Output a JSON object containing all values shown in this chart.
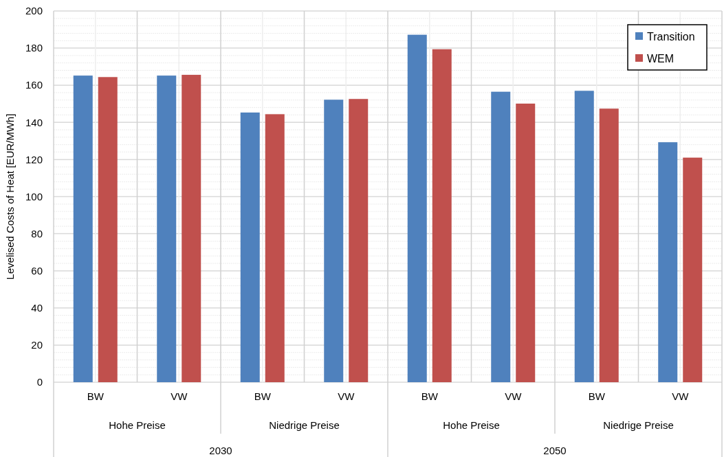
{
  "chart_data": {
    "type": "bar",
    "ylabel": "Levelised Costs of Heat [EUR/MWh]",
    "categories": [
      "BW",
      "VW",
      "BW",
      "VW",
      "BW",
      "VW",
      "BW",
      "VW"
    ],
    "series": [
      {
        "name": "Transition",
        "color": "#4f81bd",
        "values": [
          165.2,
          165.2,
          145.3,
          152.2,
          187.2,
          156.5,
          157.0,
          129.3
        ]
      },
      {
        "name": "WEM",
        "color": "#c0504d",
        "values": [
          164.4,
          165.6,
          144.4,
          152.6,
          179.4,
          150.1,
          147.4,
          121.0
        ]
      }
    ],
    "annotations": [
      "Hohe Preise",
      "Niedrige Preise",
      "Hohe Preise",
      "Niedrige Preise",
      "2030",
      "2050"
    ],
    "ylim": [
      0,
      200
    ],
    "yticks": [
      0,
      20,
      40,
      60,
      80,
      100,
      120,
      140,
      160,
      180,
      200
    ],
    "grid": true,
    "legend": "top right"
  }
}
